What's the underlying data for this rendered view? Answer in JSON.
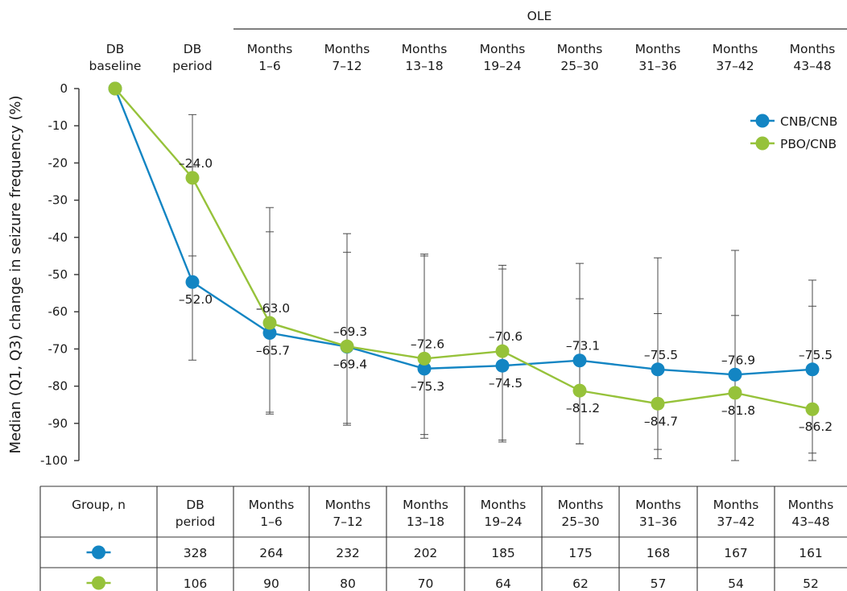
{
  "colors": {
    "cnb_cnb": "#1385c3",
    "pbo_cnb": "#96c23a",
    "error_bar": "#4a4a4a",
    "axis": "#333333"
  },
  "header": {
    "ole_label": "OLE",
    "periods": [
      [
        "DB",
        "baseline"
      ],
      [
        "DB",
        "period"
      ],
      [
        "Months",
        "1–6"
      ],
      [
        "Months",
        "7–12"
      ],
      [
        "Months",
        "13–18"
      ],
      [
        "Months",
        "19–24"
      ],
      [
        "Months",
        "25–30"
      ],
      [
        "Months",
        "31–36"
      ],
      [
        "Months",
        "37–42"
      ],
      [
        "Months",
        "43–48"
      ]
    ]
  },
  "chart_data": {
    "type": "line",
    "ylabel": "Median (Q1, Q3) change in seizure frequency (%)",
    "ylim": [
      -100,
      0
    ],
    "yticks": [
      0,
      -10,
      -20,
      -30,
      -40,
      -50,
      -60,
      -70,
      -80,
      -90,
      -100
    ],
    "y_tick_labels": [
      "0",
      "-10",
      "-20",
      "-30",
      "-40",
      "-50",
      "-60",
      "-70",
      "-80",
      "-90",
      "-100"
    ],
    "x": [
      "DB baseline",
      "DB period",
      "Months 1–6",
      "Months 7–12",
      "Months 13–18",
      "Months 19–24",
      "Months 25–30",
      "Months 31–36",
      "Months 37–42",
      "Months 43–48"
    ],
    "legend_position": "top-right",
    "grid": false,
    "series": [
      {
        "name": "CNB/CNB",
        "color": "#1385c3",
        "values": [
          0,
          -52.0,
          -65.7,
          -69.4,
          -75.3,
          -74.5,
          -73.1,
          -75.5,
          -76.9,
          -75.5
        ],
        "labels": [
          "",
          "–52.0",
          "–65.7",
          "–69.4",
          "–75.3",
          "–74.5",
          "–73.1",
          "–75.5",
          "–76.9",
          "–75.5"
        ],
        "q1": [
          null,
          -21.0,
          -38.5,
          -44.0,
          -45.0,
          -48.5,
          -56.5,
          -60.5,
          -61.0,
          -58.5
        ],
        "q3": [
          null,
          -73.0,
          -87.5,
          -90.5,
          -93.0,
          -94.5,
          -95.5,
          -97.0,
          -100.0,
          -98.0
        ]
      },
      {
        "name": "PBO/CNB",
        "color": "#96c23a",
        "values": [
          0,
          -24.0,
          -63.0,
          -69.3,
          -72.6,
          -70.6,
          -81.2,
          -84.7,
          -81.8,
          -86.2
        ],
        "labels": [
          "",
          "–24.0",
          "–63.0",
          "–69.3",
          "–72.6",
          "–70.6",
          "–81.2",
          "–84.7",
          "–81.8",
          "–86.2"
        ],
        "q1": [
          null,
          -7.0,
          -32.0,
          -39.0,
          -44.5,
          -47.5,
          -47.0,
          -45.5,
          -43.5,
          -51.5
        ],
        "q3": [
          null,
          -45.0,
          -87.0,
          -90.0,
          -94.0,
          -95.0,
          -95.5,
          -99.5,
          -100.0,
          -100.0
        ]
      }
    ]
  },
  "table": {
    "columns": [
      [
        "Group, n"
      ],
      [
        "DB",
        "period"
      ],
      [
        "Months",
        "1–6"
      ],
      [
        "Months",
        "7–12"
      ],
      [
        "Months",
        "13–18"
      ],
      [
        "Months",
        "19–24"
      ],
      [
        "Months",
        "25–30"
      ],
      [
        "Months",
        "31–36"
      ],
      [
        "Months",
        "37–42"
      ],
      [
        "Months",
        "43–48"
      ]
    ],
    "rows": [
      {
        "group": "CNB/CNB",
        "color": "#1385c3",
        "n": [
          "328",
          "264",
          "232",
          "202",
          "185",
          "175",
          "168",
          "167",
          "161"
        ]
      },
      {
        "group": "PBO/CNB",
        "color": "#96c23a",
        "n": [
          "106",
          "90",
          "80",
          "70",
          "64",
          "62",
          "57",
          "54",
          "52"
        ]
      }
    ]
  }
}
